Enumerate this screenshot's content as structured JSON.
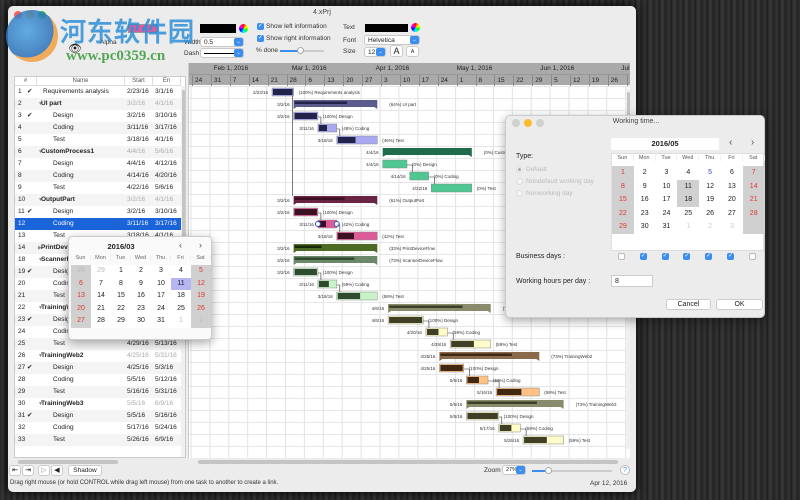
{
  "window": {
    "title": "4.xPrj"
  },
  "watermark": {
    "text": "河东软件园",
    "url": "www.pc0359.cn"
  },
  "toolbar": {
    "alpha_label": "Alpha",
    "width_label": "Width",
    "width_value": "0.5",
    "dash_label": "Dash",
    "fill_color": "#e05a9a",
    "line_color": "#000000",
    "show_left_info": "Show left information",
    "show_right_info": "Show right information",
    "percent_done_label": "% done",
    "percent_done_slider": 0.45,
    "text_label": "Text",
    "text_color": "#000000",
    "font_label": "Font",
    "font_value": "Helvetica",
    "size_label": "Size",
    "size_value": "12",
    "font_bigger": "A",
    "font_smaller": "A"
  },
  "table": {
    "headers": [
      "#",
      "Name",
      "Start",
      "En"
    ],
    "rows": [
      {
        "num": "1",
        "check": true,
        "name": "Requirements analysis",
        "start": "2/23/16",
        "end": "3/1/16",
        "level": 0,
        "group": false,
        "pct": 100,
        "color": "blue"
      },
      {
        "num": "2",
        "name": "UI part",
        "start": "3/2/16",
        "end": "4/1/16",
        "level": 0,
        "group": true,
        "pct": 64,
        "color": "blue"
      },
      {
        "num": "3",
        "check": true,
        "name": "Design",
        "start": "3/2/16",
        "end": "3/10/16",
        "level": 1,
        "pct": 100,
        "color": "blue"
      },
      {
        "num": "4",
        "name": "Coding",
        "start": "3/11/16",
        "end": "3/17/16",
        "level": 1,
        "pct": 48,
        "color": "blue"
      },
      {
        "num": "5",
        "name": "Test",
        "start": "3/18/16",
        "end": "4/1/16",
        "level": 1,
        "pct": 46,
        "color": "blue"
      },
      {
        "num": "6",
        "name": "CustomProcess1",
        "start": "4/4/16",
        "end": "5/6/16",
        "level": 0,
        "group": true,
        "pct": 0,
        "color": "green"
      },
      {
        "num": "7",
        "name": "Design",
        "start": "4/4/16",
        "end": "4/12/16",
        "level": 1,
        "pct": 0,
        "color": "green"
      },
      {
        "num": "8",
        "name": "Coding",
        "start": "4/14/16",
        "end": "4/20/16",
        "level": 1,
        "pct": 0,
        "color": "green"
      },
      {
        "num": "9",
        "name": "Test",
        "start": "4/22/16",
        "end": "5/6/16",
        "level": 1,
        "pct": 0,
        "color": "green"
      },
      {
        "num": "10",
        "name": "OutputPart",
        "start": "3/2/16",
        "end": "4/1/16",
        "level": 0,
        "group": true,
        "pct": 61,
        "color": "pink"
      },
      {
        "num": "11",
        "check": true,
        "name": "Design",
        "start": "3/2/16",
        "end": "3/10/16",
        "level": 1,
        "pct": 100,
        "color": "pink"
      },
      {
        "num": "12",
        "name": "Coding",
        "start": "3/11/16",
        "end": "3/17/16",
        "level": 1,
        "pct": 42,
        "color": "pink",
        "selected": true
      },
      {
        "num": "13",
        "name": "Test",
        "start": "3/18/16",
        "end": "4/1/16",
        "level": 1,
        "pct": 42,
        "color": "pink"
      },
      {
        "num": "14",
        "name": "PrintDeviceFlow",
        "start": "3/2/16",
        "end": "4/1/16",
        "level": 0,
        "group": true,
        "collapsed": true,
        "pct": 33,
        "color": "olive"
      },
      {
        "num": "18",
        "name": "ScannerDeviceFlow",
        "start": "3/2/16",
        "end": "4/1/16",
        "level": 0,
        "group": true,
        "pct": 73,
        "color": "sage"
      },
      {
        "num": "19",
        "check": true,
        "name": "Design",
        "start": "3/2/16",
        "end": "3/10/16",
        "level": 1,
        "pct": 100,
        "color": "sage"
      },
      {
        "num": "20",
        "name": "Coding",
        "start": "3/11/16",
        "end": "3/17/16",
        "level": 1,
        "pct": 59,
        "color": "sage"
      },
      {
        "num": "21",
        "name": "Test",
        "start": "3/18/16",
        "end": "4/1/16",
        "level": 1,
        "pct": 58,
        "color": "sage"
      },
      {
        "num": "22",
        "name": "TrainingWeb1",
        "start": "4/6/16",
        "end": "5/13/16",
        "level": 0,
        "group": true,
        "pct": 73,
        "color": "khaki"
      },
      {
        "num": "23",
        "check": true,
        "name": "Design",
        "start": "4/6/16",
        "end": "4/18/16",
        "level": 1,
        "pct": 100,
        "color": "khaki"
      },
      {
        "num": "24",
        "name": "Coding",
        "start": "4/20/16",
        "end": "4/27/16",
        "level": 1,
        "pct": 59,
        "color": "khaki"
      },
      {
        "num": "25",
        "name": "Test",
        "start": "4/29/16",
        "end": "5/13/16",
        "level": 1,
        "pct": 59,
        "color": "khaki"
      },
      {
        "num": "26",
        "name": "TrainingWeb2",
        "start": "4/25/16",
        "end": "5/31/16",
        "level": 0,
        "group": true,
        "pct": 73,
        "color": "brown"
      },
      {
        "num": "27",
        "check": true,
        "name": "Design",
        "start": "4/25/16",
        "end": "5/3/16",
        "level": 1,
        "pct": 100,
        "color": "brown"
      },
      {
        "num": "28",
        "name": "Coding",
        "start": "5/5/16",
        "end": "5/12/16",
        "level": 1,
        "pct": 59,
        "color": "brown"
      },
      {
        "num": "29",
        "name": "Test",
        "start": "5/16/16",
        "end": "5/31/16",
        "level": 1,
        "pct": 59,
        "color": "brown"
      },
      {
        "num": "30",
        "name": "TrainingWeb3",
        "start": "5/5/16",
        "end": "6/9/16",
        "level": 0,
        "group": true,
        "pct": 73,
        "color": "khaki"
      },
      {
        "num": "31",
        "check": true,
        "name": "Design",
        "start": "5/5/16",
        "end": "5/16/16",
        "level": 1,
        "pct": 100,
        "color": "khaki"
      },
      {
        "num": "32",
        "name": "Coding",
        "start": "5/17/16",
        "end": "5/24/16",
        "level": 1,
        "pct": 59,
        "color": "khaki"
      },
      {
        "num": "33",
        "name": "Test",
        "start": "5/26/16",
        "end": "6/9/16",
        "level": 1,
        "pct": 59,
        "color": "khaki"
      }
    ]
  },
  "gantt": {
    "months": [
      "Feb 1, 2016",
      "Mar 1, 2016",
      "Apr 1, 2016",
      "May 1, 2016",
      "Jun 1, 2016",
      "Jul 1"
    ],
    "week_ticks": [
      "24",
      "31",
      "7",
      "14",
      "21",
      "28",
      "6",
      "13",
      "20",
      "27",
      "3",
      "10",
      "17",
      "24",
      "1",
      "8",
      "15",
      "22",
      "29",
      "5",
      "12",
      "19",
      "26",
      "3"
    ],
    "palette": {
      "blue": {
        "group": "#5b5b8e",
        "leaf": "#a9a9f2",
        "prog": "#23234a"
      },
      "green": {
        "group": "#1f6b4c",
        "leaf": "#4ec791",
        "prog": "#0e3a28"
      },
      "pink": {
        "group": "#6b2344",
        "leaf": "#dd5c98",
        "prog": "#3a0f22"
      },
      "olive": {
        "group": "#4c6a22",
        "leaf": "#9ac060",
        "prog": "#18280a"
      },
      "sage": {
        "group": "#6b886b",
        "leaf": "#c9f2c9",
        "prog": "#2f4a2f"
      },
      "khaki": {
        "group": "#8a8a6c",
        "leaf": "#fdfbc8",
        "prog": "#3f3f25"
      },
      "brown": {
        "group": "#8a6a4a",
        "leaf": "#ffc184",
        "prog": "#3f2712"
      }
    }
  },
  "mini_calendar": {
    "title": "2016/03",
    "days": [
      "Sun",
      "Mon",
      "Tue",
      "Wed",
      "Thu",
      "Fri",
      "Sat"
    ],
    "weeks": [
      [
        "28",
        "29",
        "1",
        "2",
        "3",
        "4",
        "5"
      ],
      [
        "6",
        "7",
        "8",
        "9",
        "10",
        "11",
        "12"
      ],
      [
        "13",
        "14",
        "15",
        "16",
        "17",
        "18",
        "19"
      ],
      [
        "20",
        "21",
        "22",
        "23",
        "24",
        "25",
        "26"
      ],
      [
        "27",
        "28",
        "29",
        "30",
        "31",
        "1",
        "2"
      ]
    ],
    "selected": "11"
  },
  "working_time": {
    "title": "Working time...",
    "calendar_title": "2016/05",
    "days": [
      "Sun",
      "Mon",
      "Tue",
      "Wed",
      "Thu",
      "Fri",
      "Sat"
    ],
    "weeks": [
      [
        "1",
        "2",
        "3",
        "4",
        "5",
        "6",
        "7"
      ],
      [
        "8",
        "9",
        "10",
        "11",
        "12",
        "13",
        "14"
      ],
      [
        "15",
        "16",
        "17",
        "18",
        "19",
        "20",
        "21"
      ],
      [
        "22",
        "23",
        "24",
        "25",
        "26",
        "27",
        "28"
      ],
      [
        "29",
        "30",
        "31",
        "1",
        "2",
        "3",
        "4"
      ]
    ],
    "type_label": "Type:",
    "type_options": [
      "Default",
      "Nondefault working day",
      "Nonworking day"
    ],
    "business_days_label": "Business days :",
    "business_days": [
      false,
      true,
      true,
      true,
      true,
      true,
      false
    ],
    "hours_label": "Working hours per day :",
    "hours_value": "8",
    "cancel": "Cancel",
    "ok": "OK"
  },
  "bottom": {
    "shadow": "Shadow",
    "zoom_label": "Zoom",
    "zoom_value": "27%",
    "zoom_slider": 0.2,
    "help": "?",
    "status": "Drag right mouse (or hold CONTROL while drag left mouse) from one task to another to create a link.",
    "date": "Apr 12, 2016"
  }
}
